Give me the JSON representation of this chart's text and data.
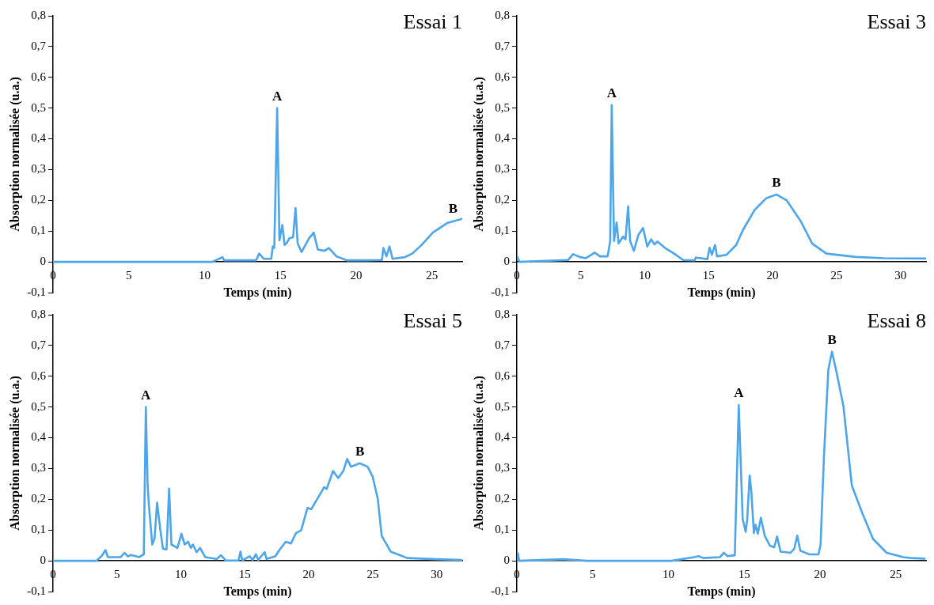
{
  "chart_data": [
    {
      "type": "line",
      "title": "Essai 1",
      "xlabel": "Temps (min)",
      "ylabel": "Absorption normalisée (u.a.)",
      "xlim": [
        0,
        27
      ],
      "xticks": [
        0,
        5,
        10,
        15,
        20,
        25
      ],
      "ylim": [
        -0.1,
        0.8
      ],
      "yticks": [
        {
          "value": -0.1,
          "label": "-0,1"
        },
        {
          "value": 0,
          "label": "0"
        },
        {
          "value": 0.1,
          "label": "0,1"
        },
        {
          "value": 0.2,
          "label": "0,2"
        },
        {
          "value": 0.3,
          "label": "0,3"
        },
        {
          "value": 0.4,
          "label": "0,4"
        },
        {
          "value": 0.5,
          "label": "0,5"
        },
        {
          "value": 0.6,
          "label": "0,6"
        },
        {
          "value": 0.7,
          "label": "0,7"
        },
        {
          "value": 0.8,
          "label": "0,8"
        }
      ],
      "grid": false,
      "legend": false,
      "marker": "none",
      "line_style": "solid",
      "series": [
        {
          "color": "#4da6ea",
          "x": [
            0,
            10.5,
            11.19,
            11.3,
            13.4,
            13.6,
            13.9,
            14.4,
            14.5,
            14.6,
            14.79,
            14.94,
            15.13,
            15.28,
            15.4,
            15.6,
            15.84,
            16.0,
            16.14,
            16.4,
            16.9,
            17.2,
            17.47,
            17.9,
            18.2,
            18.7,
            19.4,
            20.6,
            21.7,
            21.8,
            22.0,
            22.2,
            22.4,
            23.2,
            23.7,
            24.3,
            25.06,
            26.0,
            27.0
          ],
          "values": [
            0,
            0,
            0.015,
            0.005,
            0.005,
            0.027,
            0.01,
            0.01,
            0.05,
            0.045,
            0.5,
            0.07,
            0.12,
            0.055,
            0.06,
            0.077,
            0.08,
            0.175,
            0.06,
            0.032,
            0.077,
            0.095,
            0.04,
            0.036,
            0.045,
            0.018,
            0.005,
            0.005,
            0.006,
            0.045,
            0.018,
            0.05,
            0.01,
            0.015,
            0.027,
            0.054,
            0.095,
            0.126,
            0.14
          ]
        }
      ],
      "annotations": [
        {
          "text": "A",
          "x": 14.79,
          "y": 0.5
        },
        {
          "text": "B",
          "x": 26.4,
          "y": 0.135
        }
      ]
    },
    {
      "type": "line",
      "title": "Essai 3",
      "xlabel": "Temps (min)",
      "ylabel": "Absorption normalisée (u.a.)",
      "xlim": [
        0,
        32
      ],
      "xticks": [
        0,
        5,
        10,
        15,
        20,
        25,
        30
      ],
      "ylim": [
        -0.1,
        0.8
      ],
      "yticks": [
        {
          "value": -0.1,
          "label": "-0,1"
        },
        {
          "value": 0,
          "label": "0"
        },
        {
          "value": 0.1,
          "label": "0,1"
        },
        {
          "value": 0.2,
          "label": "0,2"
        },
        {
          "value": 0.3,
          "label": "0,3"
        },
        {
          "value": 0.4,
          "label": "0,4"
        },
        {
          "value": 0.5,
          "label": "0,5"
        },
        {
          "value": 0.6,
          "label": "0,6"
        },
        {
          "value": 0.7,
          "label": "0,7"
        },
        {
          "value": 0.8,
          "label": "0,8"
        }
      ],
      "grid": false,
      "legend": false,
      "marker": "none",
      "line_style": "solid",
      "series": [
        {
          "color": "#4da6ea",
          "x": [
            0,
            0.2,
            4.0,
            4.4,
            4.9,
            5.4,
            6.1,
            6.5,
            7.1,
            7.3,
            7.42,
            7.6,
            7.8,
            7.96,
            8.3,
            8.5,
            8.7,
            8.86,
            9.15,
            9.5,
            9.87,
            10.2,
            10.5,
            10.76,
            11.0,
            11.66,
            12.3,
            13.0,
            13.9,
            14.0,
            14.9,
            15.07,
            15.25,
            15.5,
            15.65,
            16.4,
            17.15,
            17.7,
            18.6,
            19.5,
            20.3,
            21.1,
            22.2,
            23.1,
            24.2,
            26.5,
            28.7,
            32
          ],
          "values": [
            0.02,
            0,
            0.006,
            0.025,
            0.016,
            0.012,
            0.03,
            0.018,
            0.018,
            0.068,
            0.51,
            0.068,
            0.128,
            0.06,
            0.082,
            0.073,
            0.18,
            0.068,
            0.036,
            0.087,
            0.11,
            0.05,
            0.073,
            0.057,
            0.066,
            0.043,
            0.027,
            0.006,
            0.005,
            0.014,
            0.009,
            0.046,
            0.023,
            0.055,
            0.018,
            0.023,
            0.055,
            0.105,
            0.169,
            0.207,
            0.219,
            0.2,
            0.132,
            0.059,
            0.027,
            0.016,
            0.012,
            0.011
          ]
        }
      ],
      "annotations": [
        {
          "text": "A",
          "x": 7.42,
          "y": 0.51
        },
        {
          "text": "B",
          "x": 20.3,
          "y": 0.219
        }
      ]
    },
    {
      "type": "line",
      "title": "Essai 5",
      "xlabel": "Temps (min)",
      "ylabel": "Absorption normalisée (u.a.)",
      "xlim": [
        0,
        32
      ],
      "xticks": [
        0,
        5,
        10,
        15,
        20,
        25,
        30
      ],
      "ylim": [
        -0.1,
        0.8
      ],
      "yticks": [
        {
          "value": -0.1,
          "label": "-0,1"
        },
        {
          "value": 0,
          "label": "0"
        },
        {
          "value": 0.1,
          "label": "0,1"
        },
        {
          "value": 0.2,
          "label": "0,2"
        },
        {
          "value": 0.3,
          "label": "0,3"
        },
        {
          "value": 0.4,
          "label": "0,4"
        },
        {
          "value": 0.5,
          "label": "0,5"
        },
        {
          "value": 0.6,
          "label": "0,6"
        },
        {
          "value": 0.7,
          "label": "0,7"
        },
        {
          "value": 0.8,
          "label": "0,8"
        }
      ],
      "grid": false,
      "legend": false,
      "marker": "none",
      "line_style": "solid",
      "series": [
        {
          "color": "#4da6ea",
          "x": [
            0,
            3.4,
            3.83,
            4.1,
            4.3,
            5.3,
            5.6,
            5.85,
            6.1,
            6.75,
            7.1,
            7.26,
            7.4,
            7.5,
            7.76,
            7.94,
            8.14,
            8.4,
            8.6,
            8.88,
            9.08,
            9.26,
            9.73,
            10.04,
            10.3,
            10.56,
            10.78,
            10.94,
            11.23,
            11.5,
            11.9,
            12.8,
            13.14,
            13.5,
            14.5,
            14.66,
            14.8,
            15.38,
            15.6,
            15.87,
            16.05,
            16.55,
            16.7,
            17.4,
            17.7,
            18.2,
            18.6,
            19.0,
            19.4,
            19.9,
            20.2,
            20.65,
            21.2,
            21.4,
            21.9,
            22.3,
            22.7,
            23.0,
            23.3,
            24.0,
            24.6,
            25.0,
            25.4,
            25.7,
            26.4,
            27.7,
            30.0,
            32
          ],
          "values": [
            0,
            0,
            0.017,
            0.035,
            0.012,
            0.012,
            0.026,
            0.014,
            0.019,
            0.012,
            0.021,
            0.5,
            0.246,
            0.18,
            0.053,
            0.072,
            0.189,
            0.099,
            0.039,
            0.037,
            0.235,
            0.053,
            0.042,
            0.088,
            0.053,
            0.062,
            0.042,
            0.053,
            0.028,
            0.042,
            0.012,
            0.006,
            0.018,
            0.001,
            0.001,
            0.03,
            0.001,
            0.015,
            0.003,
            0.021,
            0.003,
            0.028,
            0.006,
            0.015,
            0.035,
            0.062,
            0.056,
            0.09,
            0.099,
            0.172,
            0.168,
            0.2,
            0.239,
            0.234,
            0.292,
            0.269,
            0.292,
            0.331,
            0.306,
            0.317,
            0.306,
            0.273,
            0.2,
            0.081,
            0.03,
            0.009,
            0.005,
            0.003
          ]
        }
      ],
      "annotations": [
        {
          "text": "A",
          "x": 7.26,
          "y": 0.5
        },
        {
          "text": "B",
          "x": 24.0,
          "y": 0.317
        }
      ]
    },
    {
      "type": "line",
      "title": "Essai 8",
      "xlabel": "Temps (min)",
      "ylabel": "Absorption normalisée (u.a.)",
      "xlim": [
        0,
        27
      ],
      "xticks": [
        0,
        5,
        10,
        15,
        20,
        25
      ],
      "ylim": [
        -0.1,
        0.8
      ],
      "yticks": [
        {
          "value": -0.1,
          "label": "-0,1"
        },
        {
          "value": 0,
          "label": "0"
        },
        {
          "value": 0.1,
          "label": "0,1"
        },
        {
          "value": 0.2,
          "label": "0,2"
        },
        {
          "value": 0.3,
          "label": "0,3"
        },
        {
          "value": 0.4,
          "label": "0,4"
        },
        {
          "value": 0.5,
          "label": "0,5"
        },
        {
          "value": 0.6,
          "label": "0,6"
        },
        {
          "value": 0.7,
          "label": "0,7"
        },
        {
          "value": 0.8,
          "label": "0,8"
        }
      ],
      "grid": false,
      "legend": false,
      "marker": "none",
      "line_style": "solid",
      "series": [
        {
          "color": "#4da6ea",
          "x": [
            0,
            0.08,
            0.15,
            3.06,
            4.6,
            10.2,
            11.7,
            12.0,
            12.3,
            13.4,
            13.66,
            13.9,
            14.38,
            14.64,
            14.9,
            15.1,
            15.2,
            15.36,
            15.47,
            15.64,
            15.75,
            15.9,
            16.1,
            16.36,
            16.7,
            16.98,
            17.17,
            17.4,
            18.06,
            18.3,
            18.5,
            18.7,
            19.3,
            19.9,
            20.04,
            20.26,
            20.55,
            20.79,
            21.08,
            21.55,
            22.1,
            22.8,
            23.5,
            24.4,
            25.5,
            26.0,
            26.9
          ],
          "values": [
            0,
            0.024,
            0,
            0.005,
            0,
            0,
            0.012,
            0.015,
            0.009,
            0.012,
            0.026,
            0.015,
            0.018,
            0.506,
            0.136,
            0.094,
            0.136,
            0.277,
            0.227,
            0.09,
            0.117,
            0.088,
            0.14,
            0.081,
            0.049,
            0.044,
            0.079,
            0.03,
            0.026,
            0.039,
            0.082,
            0.033,
            0.021,
            0.021,
            0.053,
            0.337,
            0.621,
            0.68,
            0.616,
            0.502,
            0.245,
            0.154,
            0.071,
            0.026,
            0.012,
            0.009,
            0.007
          ]
        }
      ],
      "annotations": [
        {
          "text": "A",
          "x": 14.64,
          "y": 0.506
        },
        {
          "text": "B",
          "x": 20.79,
          "y": 0.68
        }
      ]
    }
  ]
}
